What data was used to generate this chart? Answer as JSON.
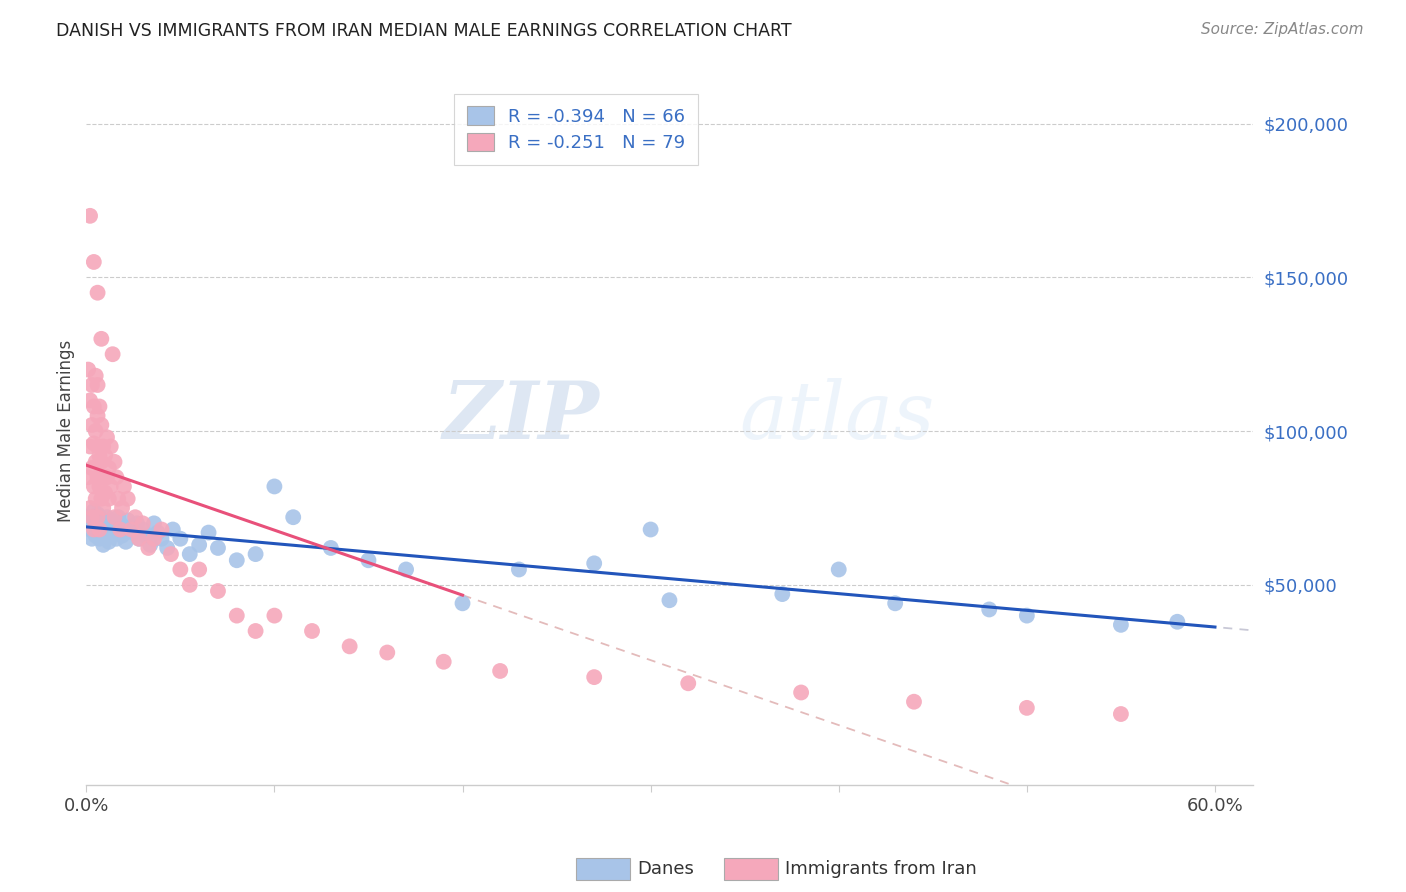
{
  "title": "DANISH VS IMMIGRANTS FROM IRAN MEDIAN MALE EARNINGS CORRELATION CHART",
  "source": "Source: ZipAtlas.com",
  "ylabel": "Median Male Earnings",
  "ytick_labels": [
    "$50,000",
    "$100,000",
    "$150,000",
    "$200,000"
  ],
  "ytick_values": [
    50000,
    100000,
    150000,
    200000
  ],
  "legend_label1": "Danes",
  "legend_label2": "Immigrants from Iran",
  "R1": "-0.394",
  "N1": "66",
  "R2": "-0.251",
  "N2": "79",
  "blue_color": "#a8c4e8",
  "pink_color": "#f5a8bb",
  "blue_line_color": "#2255bb",
  "pink_line_color": "#e8507a",
  "dash_color": "#ccbbcc",
  "watermark_zip": "ZIP",
  "watermark_atlas": "atlas",
  "xlim": [
    0.0,
    0.62
  ],
  "ylim": [
    -15000,
    215000
  ],
  "danes_x": [
    0.001,
    0.002,
    0.003,
    0.003,
    0.004,
    0.005,
    0.005,
    0.006,
    0.006,
    0.007,
    0.007,
    0.008,
    0.008,
    0.009,
    0.009,
    0.01,
    0.01,
    0.011,
    0.012,
    0.012,
    0.013,
    0.014,
    0.015,
    0.016,
    0.017,
    0.018,
    0.019,
    0.02,
    0.021,
    0.022,
    0.024,
    0.025,
    0.027,
    0.028,
    0.03,
    0.032,
    0.034,
    0.036,
    0.038,
    0.04,
    0.043,
    0.046,
    0.05,
    0.055,
    0.06,
    0.065,
    0.07,
    0.08,
    0.09,
    0.1,
    0.11,
    0.13,
    0.15,
    0.17,
    0.2,
    0.23,
    0.27,
    0.31,
    0.37,
    0.43,
    0.5,
    0.55,
    0.58,
    0.3,
    0.4,
    0.48
  ],
  "danes_y": [
    72000,
    68000,
    71000,
    65000,
    74000,
    70000,
    66000,
    73000,
    68000,
    72000,
    65000,
    71000,
    67000,
    69000,
    63000,
    70000,
    66000,
    72000,
    68000,
    64000,
    71000,
    69000,
    67000,
    65000,
    72000,
    70000,
    66000,
    68000,
    64000,
    71000,
    69000,
    67000,
    70000,
    65000,
    68000,
    66000,
    63000,
    70000,
    67000,
    65000,
    62000,
    68000,
    65000,
    60000,
    63000,
    67000,
    62000,
    58000,
    60000,
    82000,
    72000,
    62000,
    58000,
    55000,
    44000,
    55000,
    57000,
    45000,
    47000,
    44000,
    40000,
    37000,
    38000,
    68000,
    55000,
    42000
  ],
  "iran_x": [
    0.001,
    0.001,
    0.002,
    0.002,
    0.002,
    0.003,
    0.003,
    0.003,
    0.003,
    0.004,
    0.004,
    0.004,
    0.004,
    0.005,
    0.005,
    0.005,
    0.005,
    0.006,
    0.006,
    0.006,
    0.006,
    0.006,
    0.007,
    0.007,
    0.007,
    0.007,
    0.008,
    0.008,
    0.008,
    0.009,
    0.009,
    0.009,
    0.01,
    0.01,
    0.011,
    0.011,
    0.012,
    0.012,
    0.013,
    0.013,
    0.014,
    0.015,
    0.015,
    0.016,
    0.017,
    0.018,
    0.019,
    0.02,
    0.022,
    0.024,
    0.026,
    0.028,
    0.03,
    0.033,
    0.036,
    0.04,
    0.045,
    0.05,
    0.055,
    0.06,
    0.07,
    0.08,
    0.09,
    0.1,
    0.12,
    0.14,
    0.16,
    0.19,
    0.22,
    0.27,
    0.32,
    0.38,
    0.44,
    0.5,
    0.55,
    0.002,
    0.004,
    0.006,
    0.008
  ],
  "iran_y": [
    120000,
    85000,
    95000,
    75000,
    110000,
    88000,
    102000,
    72000,
    115000,
    82000,
    96000,
    68000,
    108000,
    90000,
    78000,
    100000,
    118000,
    85000,
    95000,
    72000,
    105000,
    115000,
    82000,
    92000,
    68000,
    108000,
    78000,
    90000,
    102000,
    85000,
    75000,
    95000,
    80000,
    92000,
    85000,
    98000,
    78000,
    88000,
    82000,
    95000,
    125000,
    90000,
    72000,
    85000,
    78000,
    68000,
    75000,
    82000,
    78000,
    68000,
    72000,
    65000,
    70000,
    62000,
    65000,
    68000,
    60000,
    55000,
    50000,
    55000,
    48000,
    40000,
    35000,
    40000,
    35000,
    30000,
    28000,
    25000,
    22000,
    20000,
    18000,
    15000,
    12000,
    10000,
    8000,
    170000,
    155000,
    145000,
    130000
  ]
}
